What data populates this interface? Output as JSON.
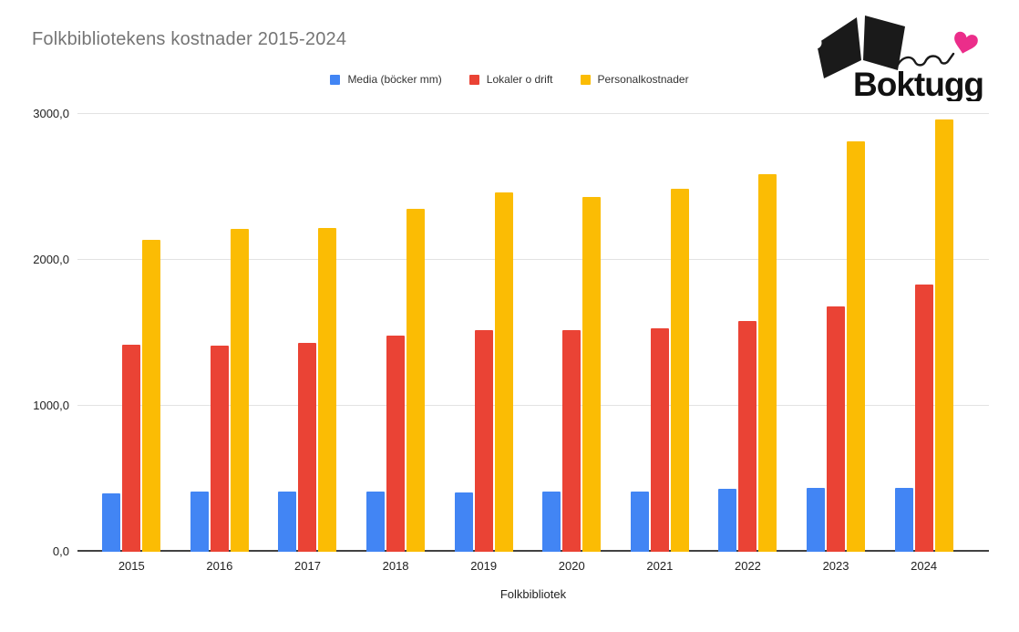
{
  "header": {
    "title": "Folkbibliotekens kostnader 2015-2024"
  },
  "logo": {
    "text": "Boktugg",
    "book_color": "#1a1a1a",
    "heart_color": "#EB2D8A"
  },
  "chart_data": {
    "type": "bar",
    "title": "Folkbibliotekens kostnader 2015-2024",
    "xlabel": "Folkbibliotek",
    "ylabel": "",
    "ylim": [
      0,
      3000
    ],
    "grid": true,
    "legend_position": "top",
    "categories": [
      "2015",
      "2016",
      "2017",
      "2018",
      "2019",
      "2020",
      "2021",
      "2022",
      "2023",
      "2024"
    ],
    "series": [
      {
        "name": "Media (böcker mm)",
        "color": "#4285F4",
        "values": [
          400,
          415,
          410,
          415,
          405,
          410,
          415,
          430,
          440,
          440
        ]
      },
      {
        "name": "Lokaler o drift",
        "color": "#EA4335",
        "values": [
          1420,
          1410,
          1430,
          1480,
          1520,
          1520,
          1530,
          1580,
          1680,
          1830
        ]
      },
      {
        "name": "Personalkostnader",
        "color": "#FBBC04",
        "values": [
          2140,
          2210,
          2220,
          2350,
          2460,
          2430,
          2490,
          2590,
          2810,
          2960
        ]
      }
    ],
    "yticks": [
      {
        "label": "0,0",
        "value": 0
      },
      {
        "label": "1000,0",
        "value": 1000
      },
      {
        "label": "2000,0",
        "value": 2000
      },
      {
        "label": "3000,0",
        "value": 3000
      }
    ]
  }
}
